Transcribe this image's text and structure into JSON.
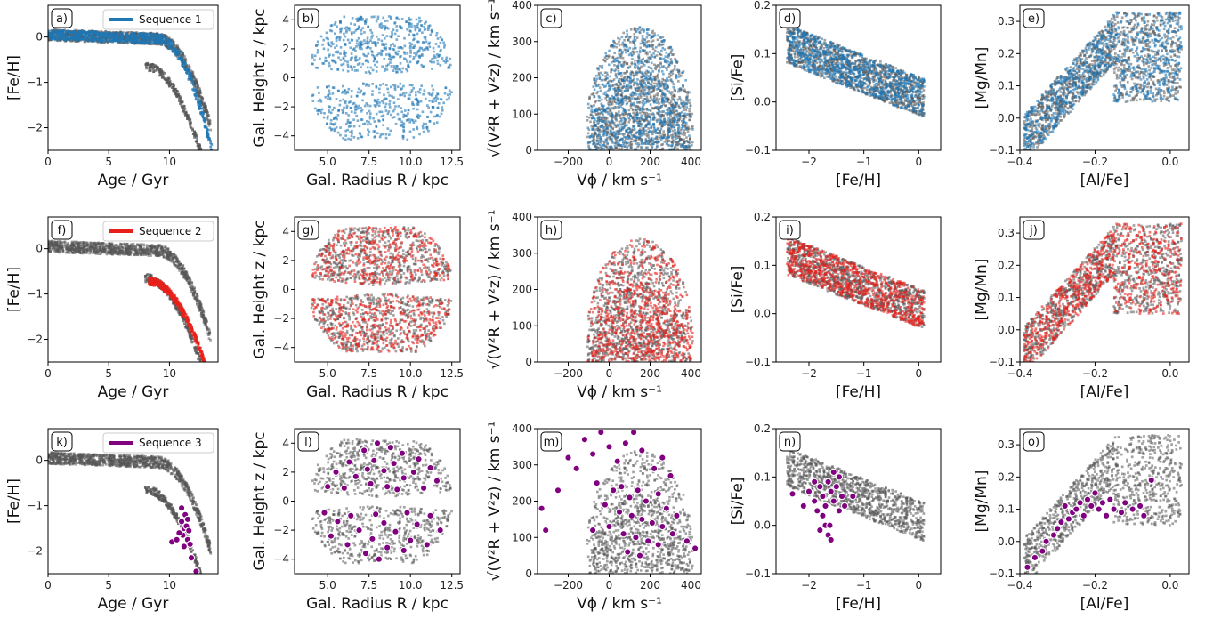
{
  "colors": {
    "sequence_1": "#1f77b4",
    "sequence_2": "#e8201a",
    "sequence_3": "#800080",
    "background_density": "#555555"
  },
  "chart_data": [
    {
      "id": "a",
      "panel_label": "a)",
      "type": "heatmap",
      "xlabel": "Age / Gyr",
      "ylabel": "[Fe/H]",
      "xlim": [
        0,
        14
      ],
      "ylim": [
        -2.5,
        0.7
      ],
      "xticks": [
        0,
        5,
        10
      ],
      "yticks": [
        0,
        -1,
        -2
      ],
      "xtick_labels": [
        "0",
        "5",
        "10"
      ],
      "ytick_labels": [
        "0",
        "−1",
        "−2"
      ],
      "legend": {
        "label": "Sequence 1",
        "color": "#1f77b4",
        "placement": "top-right"
      },
      "highlight": "sequence_1",
      "description_series": [
        {
          "name": "Sequence 1",
          "x": [
            0,
            2,
            4,
            6,
            8,
            10,
            11,
            12,
            12.5,
            13,
            13.5
          ],
          "y": [
            0,
            0,
            0,
            0,
            -0.05,
            -0.2,
            -0.4,
            -0.8,
            -1.2,
            -1.7,
            -2.4
          ]
        }
      ]
    },
    {
      "id": "b",
      "panel_label": "b)",
      "type": "heatmap",
      "xlabel": "Gal. Radius $R$ / kpc",
      "ylabel": "Gal. Height $z$ / kpc",
      "xlim": [
        3,
        13
      ],
      "ylim": [
        -5,
        5
      ],
      "xticks": [
        5,
        7.5,
        10,
        12.5
      ],
      "yticks": [
        -4,
        -2,
        0,
        2,
        4
      ],
      "xtick_labels": [
        "5.0",
        "7.5",
        "10.0",
        "12.5"
      ],
      "ytick_labels": [
        "−4",
        "−2",
        "0",
        "2",
        "4"
      ],
      "highlight": "sequence_1"
    },
    {
      "id": "c",
      "panel_label": "c)",
      "type": "heatmap",
      "xlabel": "V_phi / km s^-1",
      "ylabel": "sqrt(V_R^2 + V_z^2) / km s^-1",
      "xlim": [
        -350,
        450
      ],
      "ylim": [
        0,
        400
      ],
      "xticks": [
        -200,
        0,
        200,
        400
      ],
      "yticks": [
        0,
        100,
        200,
        300,
        400
      ],
      "xtick_labels": [
        "−200",
        "0",
        "200",
        "400"
      ],
      "ytick_labels": [
        "0",
        "100",
        "200",
        "300",
        "400"
      ],
      "highlight": "sequence_1"
    },
    {
      "id": "d",
      "panel_label": "d)",
      "type": "heatmap",
      "xlabel": "[Fe/H]",
      "ylabel": "[Si/Fe]",
      "xlim": [
        -2.6,
        0.4
      ],
      "ylim": [
        -0.1,
        0.2
      ],
      "xticks": [
        -2,
        -1,
        0
      ],
      "yticks": [
        -0.1,
        0.0,
        0.1,
        0.2
      ],
      "xtick_labels": [
        "−2",
        "−1",
        "0"
      ],
      "ytick_labels": [
        "−0.1",
        "0.0",
        "0.1",
        "0.2"
      ],
      "highlight": "sequence_1"
    },
    {
      "id": "e",
      "panel_label": "e)",
      "type": "heatmap",
      "xlabel": "[Al/Fe]",
      "ylabel": "[Mg/Mn]",
      "xlim": [
        -0.4,
        0.05
      ],
      "ylim": [
        -0.1,
        0.35
      ],
      "xticks": [
        -0.4,
        -0.2,
        0.0
      ],
      "yticks": [
        -0.1,
        0.0,
        0.1,
        0.2,
        0.3
      ],
      "xtick_labels": [
        "−0.4",
        "−0.2",
        "0.0"
      ],
      "ytick_labels": [
        "−0.1",
        "0.0",
        "0.1",
        "0.2",
        "0.3"
      ],
      "highlight": "sequence_1"
    },
    {
      "id": "f",
      "panel_label": "f)",
      "type": "heatmap",
      "xlabel": "Age / Gyr",
      "ylabel": "[Fe/H]",
      "xlim": [
        0,
        14
      ],
      "ylim": [
        -2.5,
        0.7
      ],
      "xticks": [
        0,
        5,
        10
      ],
      "yticks": [
        0,
        -1,
        -2
      ],
      "xtick_labels": [
        "0",
        "5",
        "10"
      ],
      "ytick_labels": [
        "0",
        "−1",
        "−2"
      ],
      "legend": {
        "label": "Sequence 2",
        "color": "#e8201a",
        "placement": "top-right"
      },
      "highlight": "sequence_2"
    },
    {
      "id": "g",
      "panel_label": "g)",
      "type": "heatmap",
      "xlabel": "Gal. Radius $R$ / kpc",
      "ylabel": "Gal. Height $z$ / kpc",
      "xlim": [
        3,
        13
      ],
      "ylim": [
        -5,
        5
      ],
      "xticks": [
        5,
        7.5,
        10,
        12.5
      ],
      "yticks": [
        -4,
        -2,
        0,
        2,
        4
      ],
      "xtick_labels": [
        "5.0",
        "7.5",
        "10.0",
        "12.5"
      ],
      "ytick_labels": [
        "−4",
        "−2",
        "0",
        "2",
        "4"
      ],
      "highlight": "sequence_2"
    },
    {
      "id": "h",
      "panel_label": "h)",
      "type": "heatmap",
      "xlabel": "V_phi / km s^-1",
      "ylabel": "sqrt(V_R^2 + V_z^2) / km s^-1",
      "xlim": [
        -350,
        450
      ],
      "ylim": [
        0,
        400
      ],
      "xticks": [
        -200,
        0,
        200,
        400
      ],
      "yticks": [
        0,
        100,
        200,
        300,
        400
      ],
      "xtick_labels": [
        "−200",
        "0",
        "200",
        "400"
      ],
      "ytick_labels": [
        "0",
        "100",
        "200",
        "300",
        "400"
      ],
      "highlight": "sequence_2"
    },
    {
      "id": "i",
      "panel_label": "i)",
      "type": "heatmap",
      "xlabel": "[Fe/H]",
      "ylabel": "[Si/Fe]",
      "xlim": [
        -2.6,
        0.4
      ],
      "ylim": [
        -0.1,
        0.2
      ],
      "xticks": [
        -2,
        -1,
        0
      ],
      "yticks": [
        -0.1,
        0.0,
        0.1,
        0.2
      ],
      "xtick_labels": [
        "−2",
        "−1",
        "0"
      ],
      "ytick_labels": [
        "−0.1",
        "0.0",
        "0.1",
        "0.2"
      ],
      "highlight": "sequence_2"
    },
    {
      "id": "j",
      "panel_label": "j)",
      "type": "heatmap",
      "xlabel": "[Al/Fe]",
      "ylabel": "[Mg/Mn]",
      "xlim": [
        -0.4,
        0.05
      ],
      "ylim": [
        -0.1,
        0.35
      ],
      "xticks": [
        -0.4,
        -0.2,
        0.0
      ],
      "yticks": [
        -0.1,
        0.0,
        0.1,
        0.2,
        0.3
      ],
      "xtick_labels": [
        "−0.4",
        "−0.2",
        "0.0"
      ],
      "ytick_labels": [
        "−0.1",
        "0.0",
        "0.1",
        "0.2",
        "0.3"
      ],
      "highlight": "sequence_2"
    },
    {
      "id": "k",
      "panel_label": "k)",
      "type": "scatter",
      "xlabel": "Age / Gyr",
      "ylabel": "[Fe/H]",
      "xlim": [
        0,
        14
      ],
      "ylim": [
        -2.5,
        0.7
      ],
      "xticks": [
        0,
        5,
        10
      ],
      "yticks": [
        0,
        -1,
        -2
      ],
      "xtick_labels": [
        "0",
        "5",
        "10"
      ],
      "ytick_labels": [
        "0",
        "−1",
        "−2"
      ],
      "legend": {
        "label": "Sequence 3",
        "color": "#800080",
        "placement": "top-right"
      },
      "highlight": "sequence_3",
      "points": [
        [
          10.2,
          -1.8
        ],
        [
          10.6,
          -1.75
        ],
        [
          11.0,
          -1.35
        ],
        [
          11.2,
          -1.5
        ],
        [
          11.1,
          -1.65
        ],
        [
          11.3,
          -1.2
        ],
        [
          11.5,
          -1.3
        ],
        [
          11.4,
          -1.45
        ],
        [
          11.6,
          -1.55
        ],
        [
          11.2,
          -1.9
        ],
        [
          11.5,
          -1.75
        ],
        [
          10.8,
          -1.6
        ],
        [
          11.7,
          -1.85
        ],
        [
          11.0,
          -1.05
        ],
        [
          11.8,
          -2.15
        ],
        [
          12.2,
          -2.45
        ]
      ]
    },
    {
      "id": "l",
      "panel_label": "l)",
      "type": "scatter",
      "xlabel": "Gal. Radius $R$ / kpc",
      "ylabel": "Gal. Height $z$ / kpc",
      "xlim": [
        3,
        13
      ],
      "ylim": [
        -5,
        5
      ],
      "xticks": [
        5,
        7.5,
        10,
        12.5
      ],
      "yticks": [
        -4,
        -2,
        0,
        2,
        4
      ],
      "xtick_labels": [
        "5.0",
        "7.5",
        "10.0",
        "12.5"
      ],
      "ytick_labels": [
        "−4",
        "−2",
        "0",
        "2",
        "4"
      ],
      "highlight": "sequence_3",
      "points": [
        [
          8.0,
          4.0
        ],
        [
          8.8,
          3.7
        ],
        [
          7.2,
          3.5
        ],
        [
          9.5,
          3.3
        ],
        [
          10.5,
          2.9
        ],
        [
          6.3,
          2.7
        ],
        [
          7.8,
          2.8
        ],
        [
          9.0,
          2.6
        ],
        [
          11.2,
          2.3
        ],
        [
          5.5,
          2.0
        ],
        [
          7.4,
          2.2
        ],
        [
          8.4,
          2.1
        ],
        [
          10.2,
          2.0
        ],
        [
          6.7,
          1.7
        ],
        [
          9.6,
          1.6
        ],
        [
          11.6,
          1.4
        ],
        [
          5.0,
          1.0
        ],
        [
          7.6,
          1.2
        ],
        [
          8.6,
          1.0
        ],
        [
          10.8,
          0.9
        ],
        [
          6.0,
          0.9
        ],
        [
          9.2,
          0.8
        ],
        [
          4.8,
          -0.8
        ],
        [
          6.4,
          -1.0
        ],
        [
          7.9,
          -0.9
        ],
        [
          9.8,
          -0.8
        ],
        [
          11.2,
          -1.0
        ],
        [
          5.6,
          -1.4
        ],
        [
          8.4,
          -1.5
        ],
        [
          10.4,
          -1.6
        ],
        [
          6.9,
          -2.0
        ],
        [
          9.1,
          -2.1
        ],
        [
          11.8,
          -2.0
        ],
        [
          5.2,
          -2.4
        ],
        [
          7.7,
          -2.6
        ],
        [
          10.0,
          -2.7
        ],
        [
          6.2,
          -3.0
        ],
        [
          8.6,
          -3.2
        ],
        [
          9.6,
          -3.4
        ],
        [
          7.3,
          -3.6
        ],
        [
          8.1,
          -4.0
        ],
        [
          11.0,
          -3.0
        ]
      ]
    },
    {
      "id": "m",
      "panel_label": "m)",
      "type": "scatter",
      "xlabel": "V_phi / km s^-1",
      "ylabel": "sqrt(V_R^2 + V_z^2) / km s^-1",
      "xlim": [
        -350,
        450
      ],
      "ylim": [
        0,
        400
      ],
      "xticks": [
        -200,
        0,
        200,
        400
      ],
      "yticks": [
        0,
        100,
        200,
        300,
        400
      ],
      "xtick_labels": [
        "−200",
        "0",
        "200",
        "400"
      ],
      "ytick_labels": [
        "0",
        "100",
        "200",
        "300",
        "400"
      ],
      "highlight": "sequence_3",
      "points": [
        [
          -330,
          180
        ],
        [
          -310,
          120
        ],
        [
          -250,
          230
        ],
        [
          -200,
          320
        ],
        [
          -160,
          290
        ],
        [
          -120,
          370
        ],
        [
          -80,
          330
        ],
        [
          -40,
          390
        ],
        [
          0,
          350
        ],
        [
          40,
          310
        ],
        [
          80,
          360
        ],
        [
          120,
          390
        ],
        [
          160,
          340
        ],
        [
          220,
          290
        ],
        [
          260,
          320
        ],
        [
          300,
          270
        ],
        [
          -60,
          250
        ],
        [
          20,
          230
        ],
        [
          60,
          240
        ],
        [
          100,
          210
        ],
        [
          140,
          230
        ],
        [
          180,
          200
        ],
        [
          240,
          220
        ],
        [
          280,
          180
        ],
        [
          330,
          160
        ],
        [
          -20,
          190
        ],
        [
          50,
          170
        ],
        [
          110,
          160
        ],
        [
          160,
          150
        ],
        [
          210,
          140
        ],
        [
          260,
          130
        ],
        [
          310,
          110
        ],
        [
          0,
          130
        ],
        [
          70,
          110
        ],
        [
          130,
          100
        ],
        [
          190,
          90
        ],
        [
          240,
          80
        ],
        [
          90,
          60
        ],
        [
          150,
          50
        ],
        [
          -80,
          120
        ],
        [
          380,
          90
        ],
        [
          420,
          70
        ]
      ]
    },
    {
      "id": "n",
      "panel_label": "n)",
      "type": "scatter",
      "xlabel": "[Fe/H]",
      "ylabel": "[Si/Fe]",
      "xlim": [
        -2.6,
        0.4
      ],
      "ylim": [
        -0.1,
        0.2
      ],
      "xticks": [
        -2,
        -1,
        0
      ],
      "yticks": [
        -0.1,
        0.0,
        0.1,
        0.2
      ],
      "xtick_labels": [
        "−2",
        "−1",
        "0"
      ],
      "ytick_labels": [
        "−0.1",
        "0.0",
        "0.1",
        "0.2"
      ],
      "highlight": "sequence_3",
      "points": [
        [
          -2.3,
          0.065
        ],
        [
          -2.1,
          0.04
        ],
        [
          -2.0,
          0.07
        ],
        [
          -1.9,
          0.05
        ],
        [
          -1.85,
          0.03
        ],
        [
          -1.8,
          0.08
        ],
        [
          -1.75,
          0.06
        ],
        [
          -1.7,
          0.04
        ],
        [
          -1.65,
          0.09
        ],
        [
          -1.6,
          0.07
        ],
        [
          -1.55,
          0.05
        ],
        [
          -1.5,
          0.08
        ],
        [
          -1.45,
          0.1
        ],
        [
          -1.4,
          0.06
        ],
        [
          -1.35,
          0.04
        ],
        [
          -1.7,
          0.0
        ],
        [
          -1.65,
          -0.02
        ],
        [
          -1.6,
          -0.03
        ],
        [
          -1.75,
          0.02
        ],
        [
          -1.8,
          -0.01
        ],
        [
          -1.2,
          0.06
        ],
        [
          -1.55,
          0.11
        ],
        [
          -1.9,
          0.09
        ],
        [
          -1.45,
          0.03
        ],
        [
          -1.62,
          0.0
        ]
      ]
    },
    {
      "id": "o",
      "panel_label": "o)",
      "type": "scatter",
      "xlabel": "[Al/Fe]",
      "ylabel": "[Mg/Mn]",
      "xlim": [
        -0.4,
        0.05
      ],
      "ylim": [
        -0.1,
        0.35
      ],
      "xticks": [
        -0.4,
        -0.2,
        0.0
      ],
      "yticks": [
        -0.1,
        0.0,
        0.1,
        0.2,
        0.3
      ],
      "xtick_labels": [
        "−0.4",
        "−0.2",
        "0.0"
      ],
      "ytick_labels": [
        "−0.1",
        "0.0",
        "0.1",
        "0.2",
        "0.3"
      ],
      "highlight": "sequence_3",
      "points": [
        [
          -0.38,
          -0.08
        ],
        [
          -0.36,
          -0.05
        ],
        [
          -0.34,
          -0.03
        ],
        [
          -0.33,
          0.0
        ],
        [
          -0.31,
          0.02
        ],
        [
          -0.3,
          0.04
        ],
        [
          -0.29,
          0.06
        ],
        [
          -0.27,
          0.07
        ],
        [
          -0.26,
          0.09
        ],
        [
          -0.25,
          0.1
        ],
        [
          -0.24,
          0.12
        ],
        [
          -0.23,
          0.08
        ],
        [
          -0.22,
          0.13
        ],
        [
          -0.21,
          0.11
        ],
        [
          -0.2,
          0.15
        ],
        [
          -0.19,
          0.1
        ],
        [
          -0.18,
          0.12
        ],
        [
          -0.17,
          0.08
        ],
        [
          -0.16,
          0.13
        ],
        [
          -0.15,
          0.1
        ],
        [
          -0.13,
          0.09
        ],
        [
          -0.12,
          0.12
        ],
        [
          -0.1,
          0.1
        ],
        [
          -0.08,
          0.11
        ],
        [
          -0.07,
          0.08
        ],
        [
          -0.05,
          0.19
        ],
        [
          -0.28,
          0.11
        ]
      ]
    }
  ]
}
